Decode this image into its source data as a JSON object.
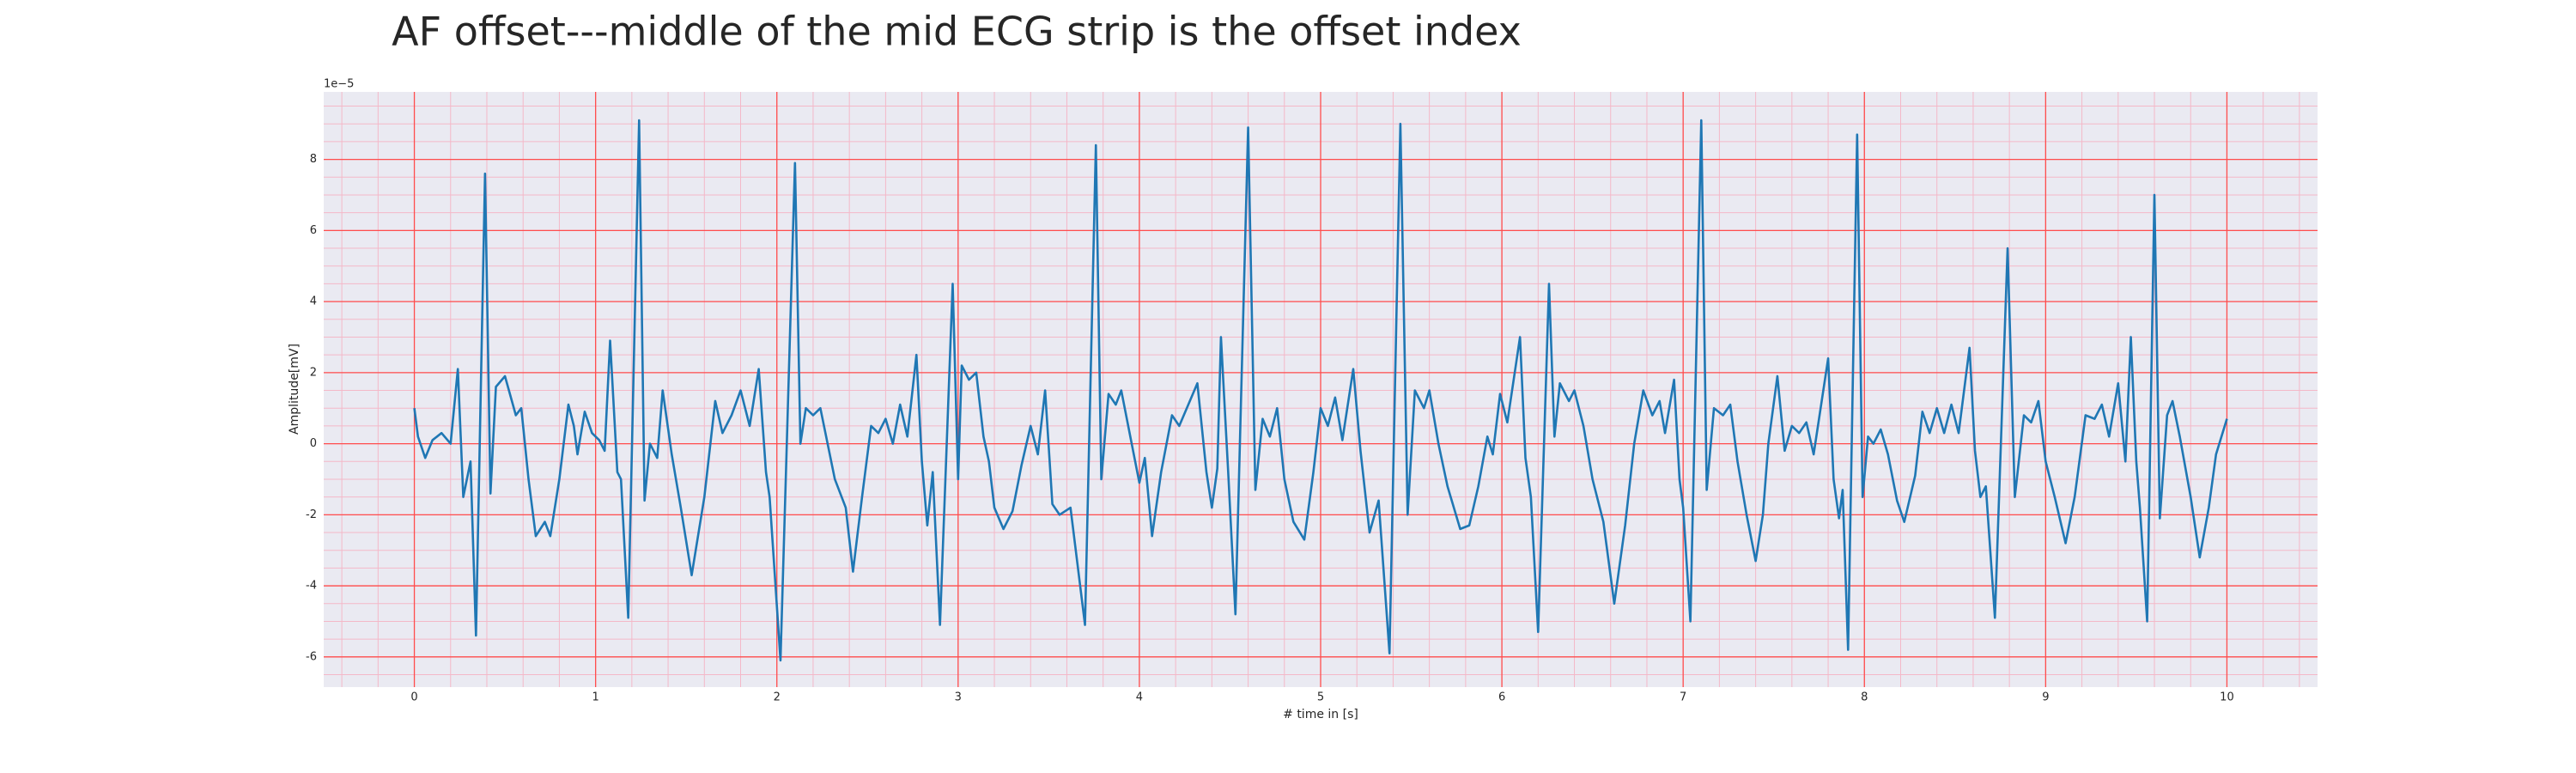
{
  "chart_data": {
    "type": "line",
    "title": "AF offset---middle of the mid ECG strip is the offset index",
    "xlabel": "# time in [s]",
    "ylabel": "Amplitude[mV]",
    "y_offset_label": "1e−5",
    "xlim": [
      -0.5,
      10.5
    ],
    "xticks": [
      0,
      1,
      2,
      3,
      4,
      5,
      6,
      7,
      8,
      9,
      10
    ],
    "ylim": [
      -6.85,
      9.9
    ],
    "yticks": [
      -6,
      -4,
      -2,
      0,
      2,
      4,
      6,
      8
    ],
    "grid": true,
    "grid_color": "#ff4d4d",
    "minor_grid_color": "#f4b8c8",
    "xminor_step": 0.2,
    "yminor_step": 0.5,
    "background": "#eaeaf2",
    "series": [
      {
        "color": "#1f77b4",
        "x": [
          0,
          0.02,
          0.06,
          0.1,
          0.15,
          0.2,
          0.24,
          0.27,
          0.31,
          0.34,
          0.39,
          0.42,
          0.45,
          0.5,
          0.56,
          0.59,
          0.63,
          0.67,
          0.72,
          0.75,
          0.8,
          0.85,
          0.88,
          0.9,
          0.94,
          0.98,
          1.02,
          1.05,
          1.08,
          1.12,
          1.14,
          1.18,
          1.24,
          1.27,
          1.3,
          1.34,
          1.37,
          1.42,
          1.47,
          1.53,
          1.6,
          1.66,
          1.7,
          1.75,
          1.8,
          1.85,
          1.9,
          1.94,
          1.96,
          2.02,
          2.1,
          2.13,
          2.16,
          2.2,
          2.24,
          2.28,
          2.32,
          2.38,
          2.42,
          2.47,
          2.52,
          2.56,
          2.6,
          2.64,
          2.68,
          2.72,
          2.77,
          2.8,
          2.83,
          2.86,
          2.9,
          2.97,
          3.0,
          3.02,
          3.06,
          3.1,
          3.14,
          3.17,
          3.2,
          3.25,
          3.3,
          3.35,
          3.4,
          3.44,
          3.48,
          3.52,
          3.56,
          3.62,
          3.7,
          3.76,
          3.79,
          3.83,
          3.87,
          3.9,
          3.95,
          4.0,
          4.03,
          4.07,
          4.12,
          4.18,
          4.22,
          4.27,
          4.32,
          4.37,
          4.4,
          4.43,
          4.45,
          4.49,
          4.53,
          4.6,
          4.64,
          4.68,
          4.72,
          4.76,
          4.8,
          4.85,
          4.91,
          4.96,
          5.0,
          5.04,
          5.08,
          5.12,
          5.18,
          5.22,
          5.27,
          5.32,
          5.38,
          5.44,
          5.48,
          5.52,
          5.57,
          5.6,
          5.65,
          5.7,
          5.77,
          5.82,
          5.87,
          5.92,
          5.95,
          5.99,
          6.03,
          6.1,
          6.13,
          6.16,
          6.2,
          6.26,
          6.29,
          6.32,
          6.37,
          6.4,
          6.45,
          6.5,
          6.56,
          6.62,
          6.68,
          6.73,
          6.78,
          6.83,
          6.87,
          6.9,
          6.95,
          6.98,
          7.0,
          7.04,
          7.1,
          7.13,
          7.17,
          7.22,
          7.26,
          7.3,
          7.35,
          7.4,
          7.44,
          7.47,
          7.52,
          7.56,
          7.6,
          7.64,
          7.68,
          7.72,
          7.8,
          7.83,
          7.86,
          7.88,
          7.91,
          7.96,
          7.99,
          8.02,
          8.05,
          8.09,
          8.13,
          8.18,
          8.22,
          8.28,
          8.32,
          8.36,
          8.4,
          8.44,
          8.48,
          8.52,
          8.58,
          8.61,
          8.64,
          8.67,
          8.72,
          8.79,
          8.83,
          8.88,
          8.92,
          8.96,
          9.0,
          9.05,
          9.11,
          9.16,
          9.22,
          9.27,
          9.31,
          9.35,
          9.4,
          9.44,
          9.47,
          9.5,
          9.52,
          9.56,
          9.6,
          9.63,
          9.67,
          9.7,
          9.74,
          9.8,
          9.85,
          9.9,
          9.94,
          10.0
        ],
        "values": [
          1,
          0.2,
          -0.4,
          0.1,
          0.3,
          0,
          2.1,
          -1.5,
          -0.5,
          -5.4,
          7.6,
          -1.4,
          1.6,
          1.9,
          0.8,
          1.0,
          -1,
          -2.6,
          -2.2,
          -2.6,
          -1,
          1.1,
          0.5,
          -0.3,
          0.9,
          0.3,
          0.1,
          -0.2,
          2.9,
          -0.8,
          -1,
          -4.9,
          9.1,
          -1.6,
          0,
          -0.4,
          1.5,
          -0.3,
          -1.8,
          -3.7,
          -1.5,
          1.2,
          0.3,
          0.8,
          1.5,
          0.5,
          2.1,
          -0.8,
          -1.5,
          -6.1,
          7.9,
          0,
          1.0,
          0.8,
          1,
          0,
          -1,
          -1.8,
          -3.6,
          -1.5,
          0.5,
          0.3,
          0.7,
          0,
          1.1,
          0.2,
          2.5,
          -0.5,
          -2.3,
          -0.8,
          -5.1,
          4.5,
          -1,
          2.2,
          1.8,
          2.0,
          0.2,
          -0.5,
          -1.8,
          -2.4,
          -1.9,
          -0.6,
          0.5,
          -0.3,
          1.5,
          -1.7,
          -2.0,
          -1.8,
          -5.1,
          8.4,
          -1.0,
          1.4,
          1.1,
          1.5,
          0.2,
          -1.1,
          -0.4,
          -2.6,
          -0.8,
          0.8,
          0.5,
          1.1,
          1.7,
          -0.8,
          -1.8,
          -0.7,
          3.0,
          -0.8,
          -4.8,
          8.9,
          -1.3,
          0.7,
          0.2,
          1.0,
          -1,
          -2.2,
          -2.7,
          -0.8,
          1.0,
          0.5,
          1.3,
          0.1,
          2.1,
          -0.2,
          -2.5,
          -1.6,
          -5.9,
          9.0,
          -2.0,
          1.5,
          1.0,
          1.5,
          0,
          -1.2,
          -2.4,
          -2.3,
          -1.2,
          0.2,
          -0.3,
          1.4,
          0.6,
          3.0,
          -0.4,
          -1.5,
          -5.3,
          4.5,
          0.2,
          1.7,
          1.2,
          1.5,
          0.5,
          -1,
          -2.2,
          -4.5,
          -2.3,
          0,
          1.5,
          0.8,
          1.2,
          0.3,
          1.8,
          -1,
          -1.8,
          -5.0,
          9.1,
          -1.3,
          1.0,
          0.8,
          1.1,
          -0.5,
          -2.0,
          -3.3,
          -2.0,
          0,
          1.9,
          -0.2,
          0.5,
          0.3,
          0.6,
          -0.3,
          2.4,
          -1.0,
          -2.1,
          -1.3,
          -5.8,
          8.7,
          -1.5,
          0.2,
          0,
          0.4,
          -0.3,
          -1.6,
          -2.2,
          -0.9,
          0.9,
          0.3,
          1.0,
          0.3,
          1.1,
          0.3,
          2.7,
          -0.2,
          -1.5,
          -1.2,
          -4.9,
          5.5,
          -1.5,
          0.8,
          0.6,
          1.2,
          -0.5,
          -1.5,
          -2.8,
          -1.5,
          0.8,
          0.7,
          1.1,
          0.2,
          1.7,
          -0.5,
          3.0,
          -0.5,
          -1.8,
          -5.0,
          7.0,
          -2.1,
          0.8,
          1.2,
          0.2,
          -1.5,
          -3.2,
          -1.8,
          -0.3,
          0.7
        ]
      }
    ]
  }
}
